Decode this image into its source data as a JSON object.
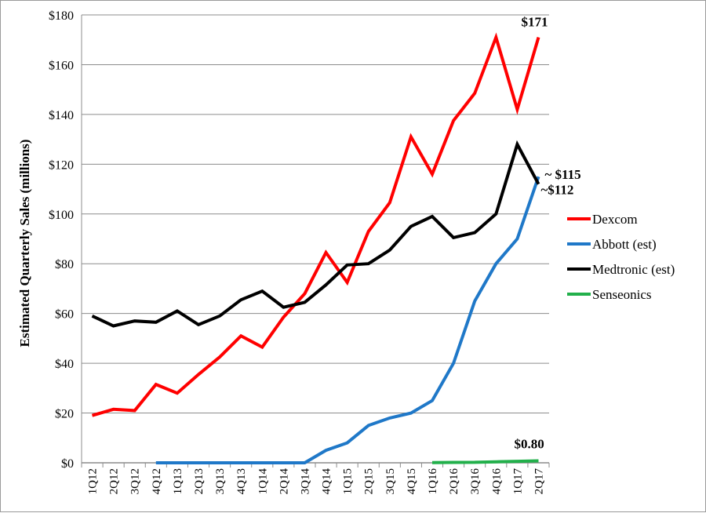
{
  "chart_data": {
    "type": "line",
    "title": "",
    "xlabel": "",
    "ylabel": "Estimated Quarterly Sales (millions)",
    "ylim": [
      0,
      180
    ],
    "yticks": [
      0,
      20,
      40,
      60,
      80,
      100,
      120,
      140,
      160,
      180
    ],
    "ytick_labels": [
      "$0",
      "$20",
      "$40",
      "$60",
      "$80",
      "$100",
      "$120",
      "$140",
      "$160",
      "$180"
    ],
    "grid": "horizontal",
    "legend_position": "right",
    "categories": [
      "1Q12",
      "2Q12",
      "3Q12",
      "4Q12",
      "1Q13",
      "2Q13",
      "3Q13",
      "4Q13",
      "1Q14",
      "2Q14",
      "3Q14",
      "4Q14",
      "1Q15",
      "2Q15",
      "3Q15",
      "4Q15",
      "1Q16",
      "2Q16",
      "3Q16",
      "4Q16",
      "1Q17",
      "2Q17"
    ],
    "series": [
      {
        "name": "Dexcom",
        "color": "#ff0000",
        "values": [
          19,
          21.5,
          21,
          31.5,
          28,
          35.5,
          42.5,
          51,
          46.5,
          58.5,
          68,
          84.5,
          72.5,
          93,
          104.5,
          131,
          116,
          137.5,
          148.5,
          171,
          142,
          171
        ]
      },
      {
        "name": "Abbott (est)",
        "color": "#1f78c8",
        "values": [
          null,
          null,
          null,
          0,
          0,
          0,
          0,
          0,
          0,
          0,
          0,
          5,
          8,
          15,
          18,
          20,
          25,
          40,
          65,
          80,
          90,
          115
        ]
      },
      {
        "name": "Medtronic (est)",
        "color": "#000000",
        "values": [
          59,
          55,
          57,
          56.5,
          61,
          55.5,
          59,
          65.5,
          69,
          62.5,
          64.5,
          71.5,
          79.5,
          80,
          85.5,
          95,
          99,
          90.5,
          92.5,
          100,
          128,
          112
        ]
      },
      {
        "name": "Senseonics",
        "color": "#22b04b",
        "values": [
          null,
          null,
          null,
          null,
          null,
          null,
          null,
          null,
          null,
          null,
          null,
          null,
          null,
          null,
          null,
          null,
          0.1,
          0.15,
          0.2,
          0.4,
          0.6,
          0.8
        ]
      }
    ],
    "annotations": [
      {
        "text": "$171",
        "series": "Dexcom",
        "x": "2Q17",
        "y": 171
      },
      {
        "text": "~ $115",
        "series": "Abbott (est)",
        "x": "2Q17",
        "y": 115
      },
      {
        "text": "~$112",
        "series": "Medtronic (est)",
        "x": "2Q17",
        "y": 112
      },
      {
        "text": "$0.80",
        "series": "Senseonics",
        "x": "2Q17",
        "y": 0.8
      }
    ]
  }
}
